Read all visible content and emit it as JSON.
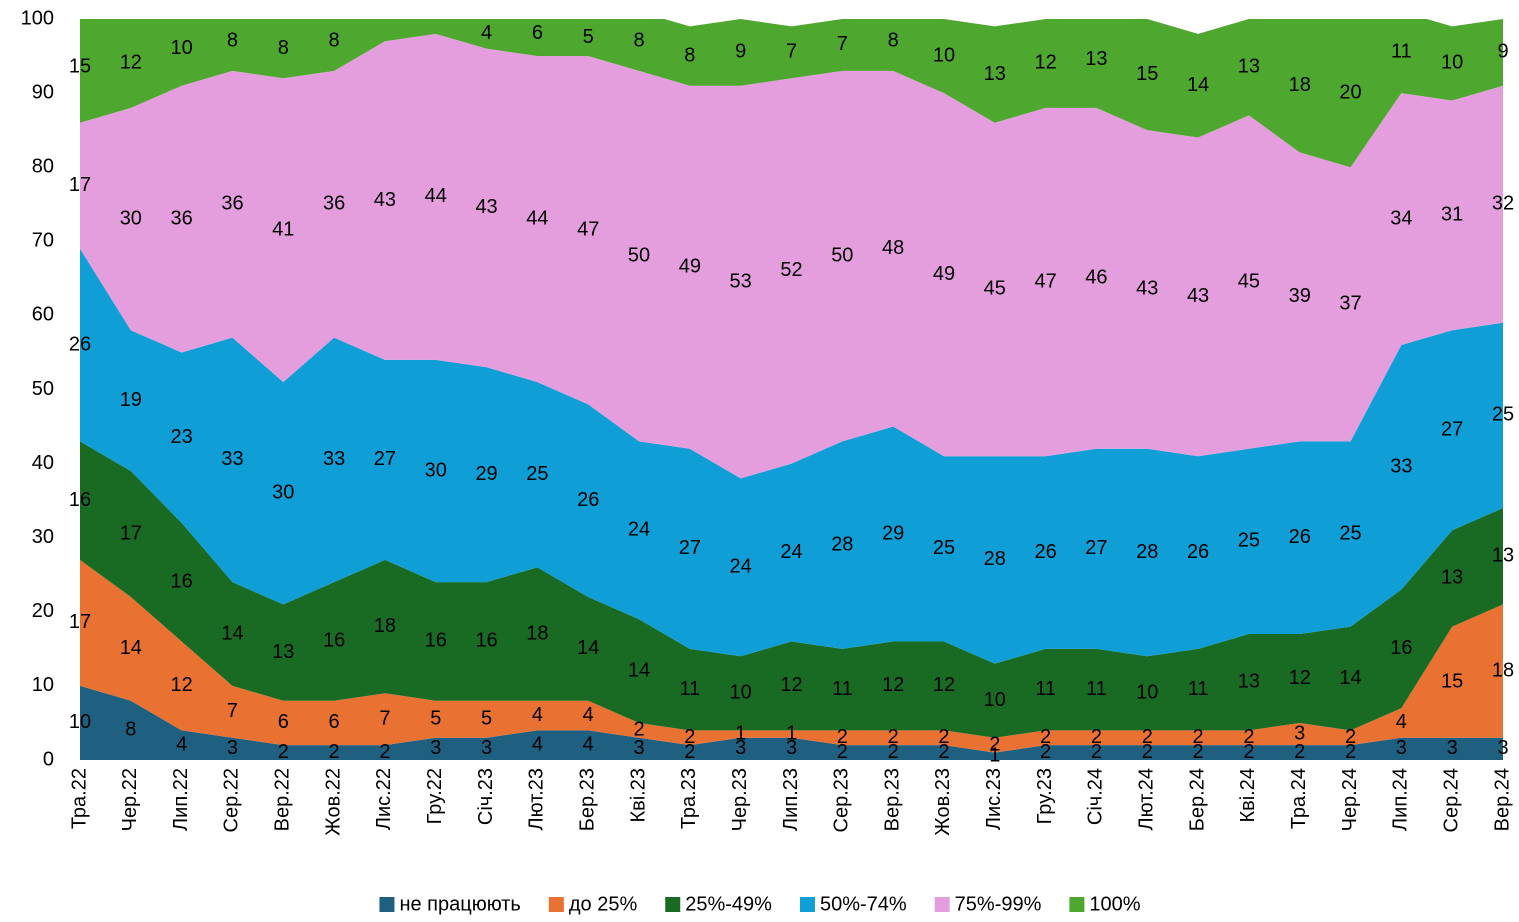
{
  "chart_data": {
    "type": "stacked_area",
    "categories": [
      "Тра.22",
      "Чер.22",
      "Лип.22",
      "Сер.22",
      "Вер.22",
      "Жов.22",
      "Лис.22",
      "Гру.22",
      "Січ.23",
      "Лют.23",
      "Бер.23",
      "Кві.23",
      "Тра.23",
      "Чер.23",
      "Лип.23",
      "Сер.23",
      "Вер.23",
      "Жов.23",
      "Лис.23",
      "Гру.23",
      "Січ.24",
      "Лют.24",
      "Бер.24",
      "Кві.24",
      "Тра.24",
      "Чер.24",
      "Лип.24",
      "Сер.24",
      "Вер.24"
    ],
    "series": [
      {
        "name": "не працюють",
        "color": "#1f5f80",
        "values": [
          10,
          8,
          4,
          3,
          2,
          2,
          2,
          3,
          3,
          4,
          4,
          3,
          2,
          3,
          3,
          2,
          2,
          2,
          1,
          2,
          2,
          2,
          2,
          2,
          2,
          2,
          3,
          3,
          3
        ]
      },
      {
        "name": "до 25%",
        "color": "#e97132",
        "values": [
          17,
          14,
          12,
          7,
          6,
          6,
          7,
          5,
          5,
          4,
          4,
          2,
          2,
          1,
          1,
          2,
          2,
          2,
          2,
          2,
          2,
          2,
          2,
          2,
          3,
          2,
          4,
          15,
          18
        ]
      },
      {
        "name": "25%-49%",
        "color": "#196b24",
        "values": [
          16,
          17,
          16,
          14,
          13,
          16,
          18,
          16,
          16,
          18,
          14,
          14,
          11,
          10,
          12,
          11,
          12,
          12,
          10,
          11,
          11,
          10,
          11,
          13,
          12,
          14,
          16,
          13,
          13
        ]
      },
      {
        "name": "50%-74%",
        "color": "#0f9ed5",
        "values": [
          26,
          19,
          23,
          33,
          30,
          33,
          27,
          30,
          29,
          25,
          26,
          24,
          27,
          24,
          24,
          28,
          29,
          25,
          28,
          26,
          27,
          28,
          26,
          25,
          26,
          25,
          33,
          27,
          25
        ]
      },
      {
        "name": "75%-99%",
        "color": "#e59edd",
        "values": [
          17,
          30,
          36,
          36,
          41,
          36,
          43,
          44,
          43,
          44,
          47,
          50,
          49,
          53,
          52,
          50,
          48,
          49,
          45,
          47,
          46,
          43,
          43,
          45,
          39,
          37,
          34,
          31,
          32
        ]
      },
      {
        "name": "100%",
        "color": "#4ea72e",
        "values": [
          15,
          12,
          10,
          8,
          8,
          8,
          3,
          2,
          4,
          6,
          5,
          8,
          8,
          9,
          7,
          7,
          8,
          10,
          13,
          12,
          13,
          15,
          14,
          13,
          18,
          20,
          11,
          10,
          9
        ],
        "value_labels": [
          "15",
          "12",
          "10",
          "8",
          "8",
          "8",
          null,
          null,
          "4",
          "6",
          "5",
          "8",
          "8",
          "9",
          "7",
          "7",
          "8",
          "10",
          "13",
          "12",
          "13",
          "15",
          "14",
          "13",
          "18",
          "20",
          "11",
          "10",
          "9"
        ]
      }
    ],
    "ylim": [
      0,
      100
    ],
    "yticks": [
      0,
      10,
      20,
      30,
      40,
      50,
      60,
      70,
      80,
      90,
      100
    ],
    "legend": "bottom"
  }
}
